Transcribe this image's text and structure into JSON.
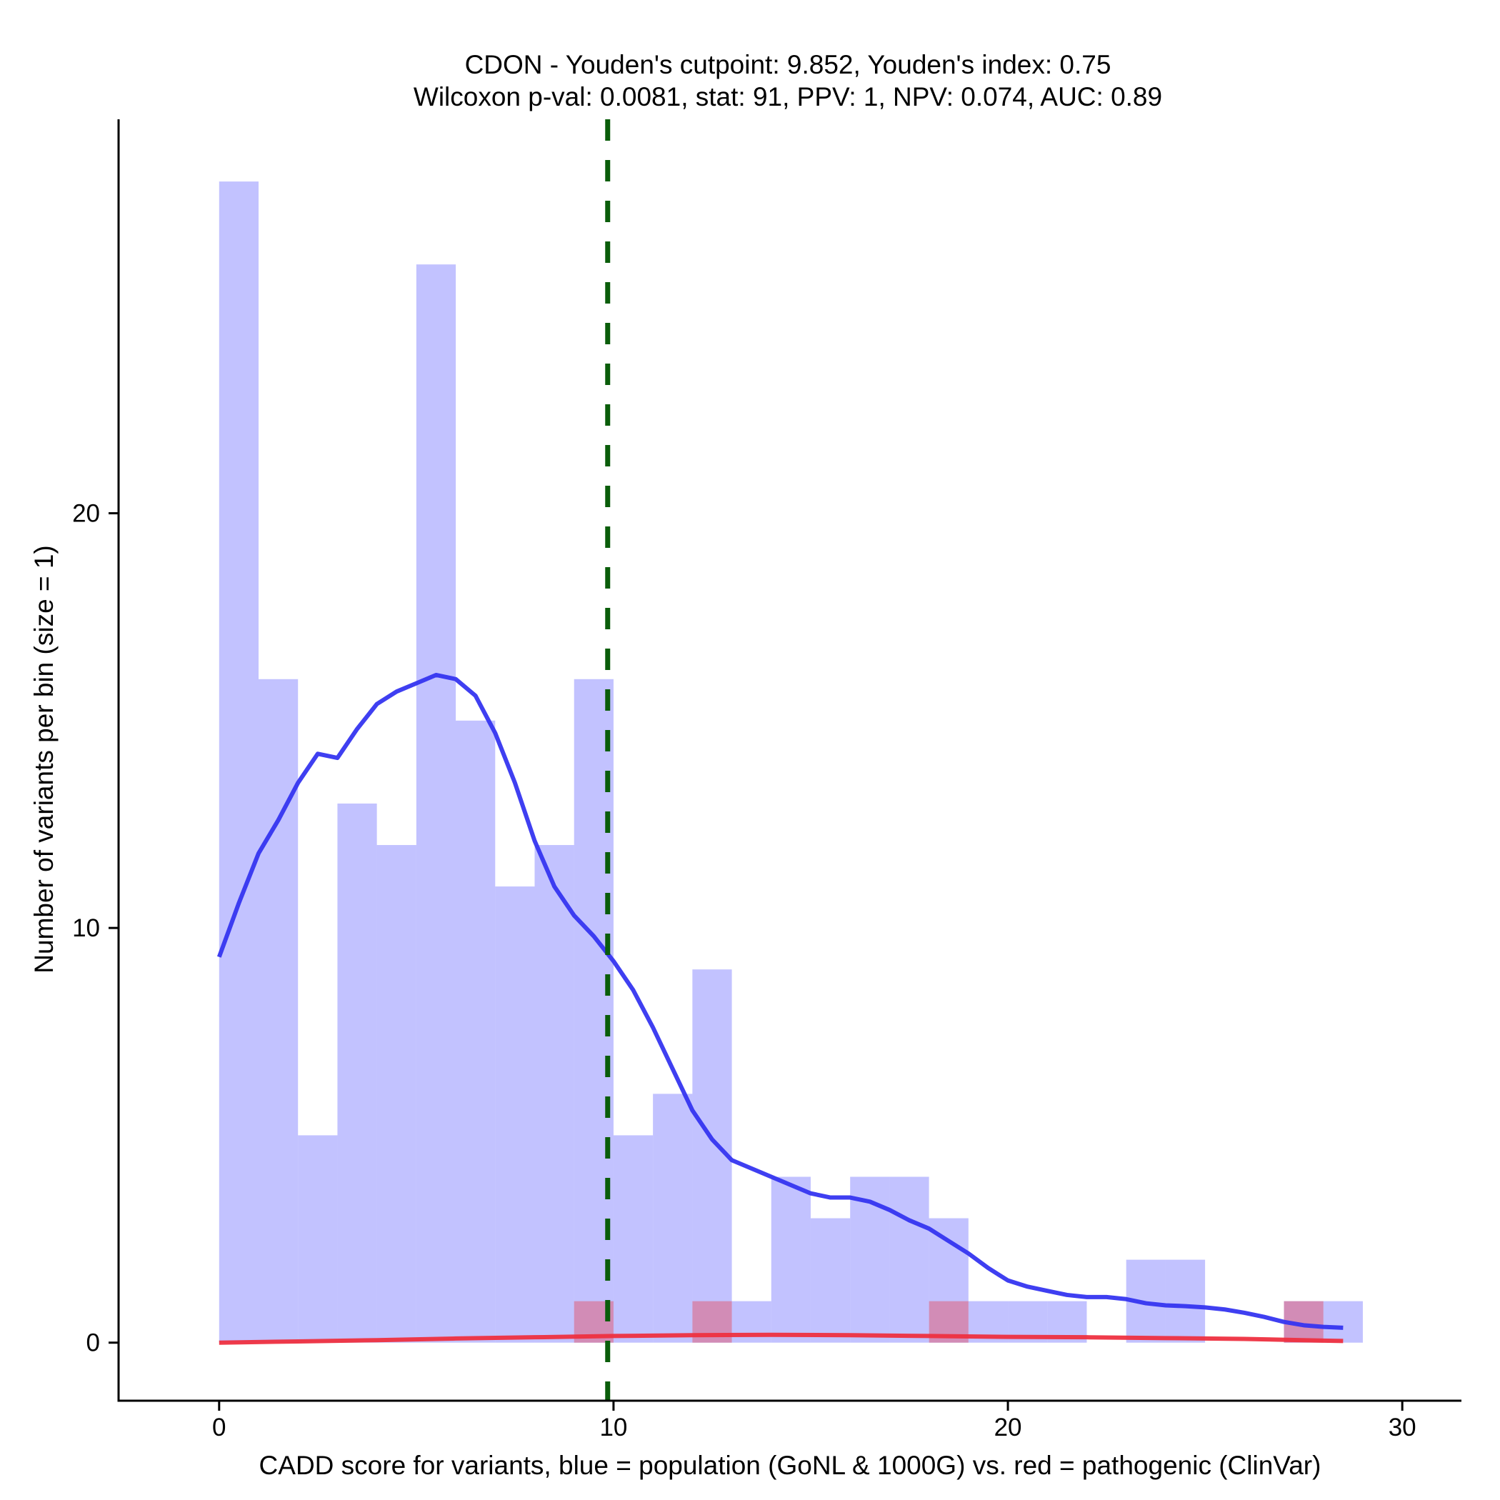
{
  "chart_data": {
    "type": "bar",
    "title_line1": "CDON - Youden's cutpoint: 9.852, Youden's index: 0.75",
    "title_line2": "Wilcoxon p-val: 0.0081, stat: 91, PPV: 1, NPV: 0.074, AUC: 0.89",
    "xlabel": "CADD score for variants, blue = population (GoNL & 1000G) vs. red = pathogenic (ClinVar)",
    "ylabel": "Number of variants per bin (size = 1)",
    "xlim": [
      -2.55,
      31.5
    ],
    "ylim": [
      -1.4,
      29.5
    ],
    "x_ticks": [
      0,
      10,
      20,
      30
    ],
    "x_tick_labels": [
      "0",
      "10",
      "20",
      "30"
    ],
    "y_ticks": [
      0,
      10,
      20
    ],
    "y_tick_labels": [
      "0",
      "10",
      "20"
    ],
    "bin_width": 1,
    "cutpoint": 9.852,
    "series": [
      {
        "name": "population (GoNL & 1000G)",
        "color": "#7777ff",
        "bin_starts": [
          0,
          1,
          2,
          3,
          4,
          5,
          6,
          7,
          8,
          9,
          10,
          11,
          12,
          13,
          14,
          15,
          16,
          17,
          18,
          19,
          20,
          21,
          22,
          23,
          24,
          25,
          26,
          27,
          28
        ],
        "values": [
          28,
          16,
          5,
          13,
          12,
          26,
          15,
          11,
          12,
          16,
          5,
          6,
          9,
          1,
          4,
          3,
          4,
          4,
          3,
          1,
          1,
          1,
          0,
          2,
          2,
          0,
          0,
          1,
          1
        ]
      },
      {
        "name": "pathogenic (ClinVar)",
        "color": "#e0607a",
        "bin_starts": [
          9,
          12,
          18,
          27
        ],
        "values": [
          1,
          1,
          1,
          1
        ]
      }
    ],
    "density_curves": [
      {
        "name": "population density",
        "color": "#3535f0",
        "x": [
          0,
          0.5,
          1,
          1.5,
          2,
          2.5,
          3,
          3.5,
          4,
          4.5,
          5,
          5.5,
          6,
          6.5,
          7,
          7.5,
          8,
          8.5,
          9,
          9.5,
          10,
          10.5,
          11,
          11.5,
          12,
          12.5,
          13,
          13.5,
          14,
          14.5,
          15,
          15.5,
          16,
          16.5,
          17,
          17.5,
          18,
          18.5,
          19,
          19.5,
          20,
          20.5,
          21,
          21.5,
          22,
          22.5,
          23,
          23.5,
          24,
          24.5,
          25,
          25.5,
          26,
          26.5,
          27,
          27.5,
          28,
          28.5
        ],
        "y": [
          9.3,
          10.6,
          11.8,
          12.6,
          13.5,
          14.2,
          14.1,
          14.8,
          15.4,
          15.7,
          15.9,
          16.1,
          16.0,
          15.6,
          14.7,
          13.5,
          12.1,
          11.0,
          10.3,
          9.8,
          9.2,
          8.5,
          7.6,
          6.6,
          5.6,
          4.9,
          4.4,
          4.2,
          4.0,
          3.8,
          3.6,
          3.5,
          3.5,
          3.4,
          3.2,
          2.95,
          2.75,
          2.45,
          2.15,
          1.8,
          1.5,
          1.35,
          1.25,
          1.15,
          1.1,
          1.1,
          1.05,
          0.95,
          0.9,
          0.88,
          0.85,
          0.8,
          0.72,
          0.62,
          0.5,
          0.42,
          0.38,
          0.36
        ]
      },
      {
        "name": "pathogenic density",
        "color": "#ee3040",
        "x": [
          0,
          2,
          4,
          6,
          8,
          10,
          12,
          14,
          16,
          18,
          20,
          22,
          24,
          26,
          28,
          28.5
        ],
        "y": [
          0,
          0.03,
          0.06,
          0.1,
          0.13,
          0.16,
          0.18,
          0.19,
          0.18,
          0.16,
          0.14,
          0.13,
          0.11,
          0.09,
          0.05,
          0.04
        ]
      }
    ]
  }
}
